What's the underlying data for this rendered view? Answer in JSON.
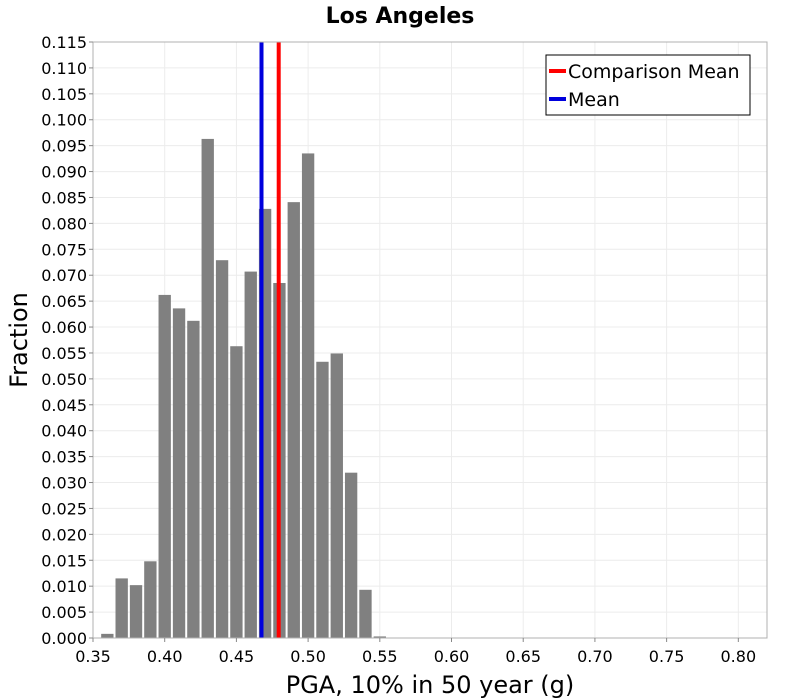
{
  "chart_data": {
    "type": "bar",
    "title": "Los Angeles",
    "xlabel": "PGA, 10% in 50 year (g)",
    "ylabel": "Fraction",
    "xlim": [
      0.35,
      0.82
    ],
    "ylim": [
      0.0,
      0.115
    ],
    "grid": true,
    "legend_position": "top-right",
    "x_ticks": [
      "0.35",
      "0.40",
      "0.45",
      "0.50",
      "0.55",
      "0.60",
      "0.65",
      "0.70",
      "0.75",
      "0.80"
    ],
    "y_ticks": [
      "0.000",
      "0.005",
      "0.010",
      "0.015",
      "0.020",
      "0.025",
      "0.030",
      "0.035",
      "0.040",
      "0.045",
      "0.050",
      "0.055",
      "0.060",
      "0.065",
      "0.070",
      "0.075",
      "0.080",
      "0.085",
      "0.090",
      "0.095",
      "0.100",
      "0.105",
      "0.110",
      "0.115"
    ],
    "bin_width": 0.01,
    "bins": [
      {
        "x": 0.36,
        "value": 0.0008
      },
      {
        "x": 0.37,
        "value": 0.0115
      },
      {
        "x": 0.38,
        "value": 0.0102
      },
      {
        "x": 0.39,
        "value": 0.0148
      },
      {
        "x": 0.4,
        "value": 0.0662
      },
      {
        "x": 0.41,
        "value": 0.0636
      },
      {
        "x": 0.42,
        "value": 0.0612
      },
      {
        "x": 0.43,
        "value": 0.0963
      },
      {
        "x": 0.44,
        "value": 0.0729
      },
      {
        "x": 0.45,
        "value": 0.0563
      },
      {
        "x": 0.46,
        "value": 0.0707
      },
      {
        "x": 0.47,
        "value": 0.0828
      },
      {
        "x": 0.48,
        "value": 0.0685
      },
      {
        "x": 0.49,
        "value": 0.0841
      },
      {
        "x": 0.5,
        "value": 0.0935
      },
      {
        "x": 0.51,
        "value": 0.0533
      },
      {
        "x": 0.52,
        "value": 0.0549
      },
      {
        "x": 0.53,
        "value": 0.0319
      },
      {
        "x": 0.54,
        "value": 0.0093
      },
      {
        "x": 0.55,
        "value": 0.0003
      }
    ],
    "bar_color": "#808080",
    "series": [
      {
        "name": "Comparison Mean",
        "type": "vline",
        "x": 0.4795,
        "color": "#ff0000"
      },
      {
        "name": "Mean",
        "type": "vline",
        "x": 0.4675,
        "color": "#0000dd"
      }
    ]
  }
}
